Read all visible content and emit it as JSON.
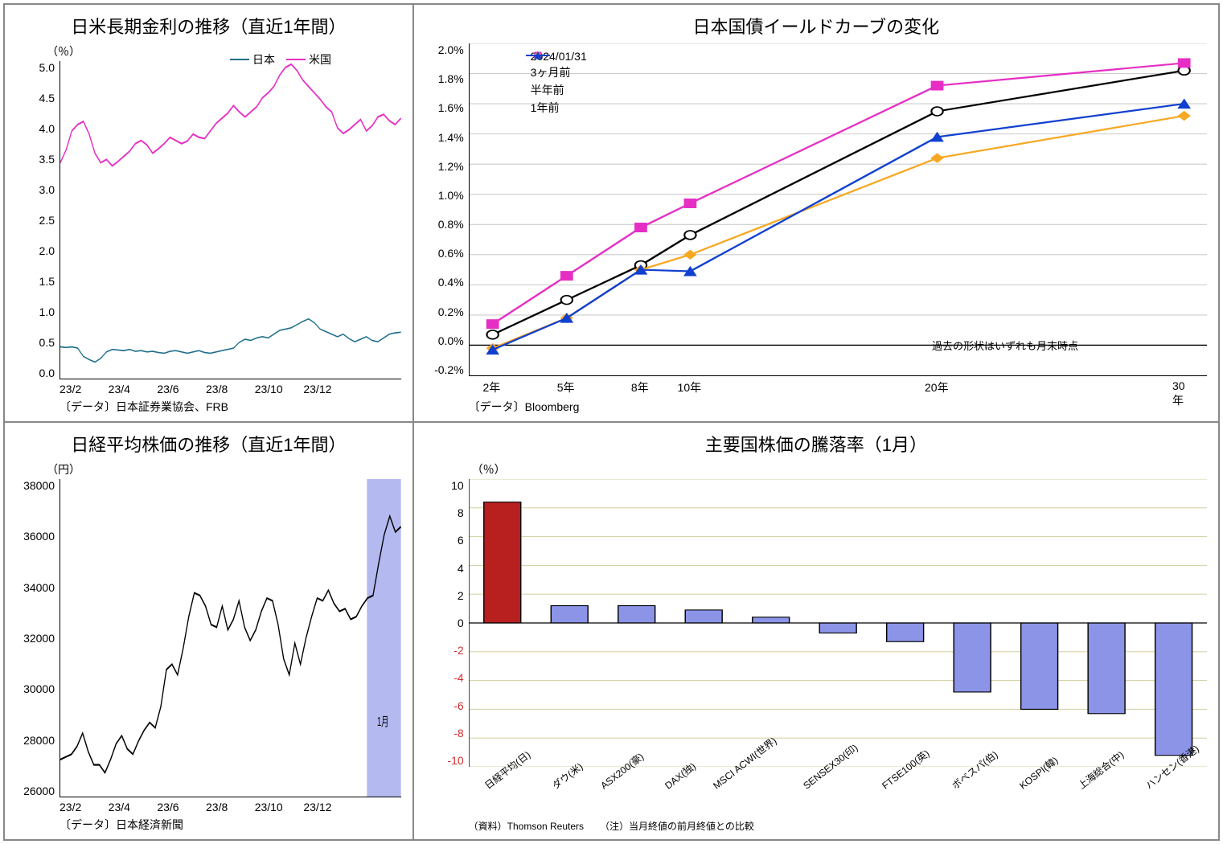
{
  "panels": {
    "tl": {
      "title": "日米長期金利の推移（直近1年間）",
      "yunit": "（％）",
      "ylim": [
        0,
        5.0
      ],
      "yticks": [
        "5.0",
        "4.5",
        "4.0",
        "3.5",
        "3.0",
        "2.5",
        "2.0",
        "1.5",
        "1.0",
        "0.5",
        "0.0"
      ],
      "xticks": [
        "23/2",
        "23/4",
        "23/6",
        "23/8",
        "23/10",
        "23/12",
        ""
      ],
      "source": "〔データ〕日本証券業協会、FRB",
      "legend": {
        "jp": {
          "label": "日本",
          "color": "#1f6f8b"
        },
        "us": {
          "label": "米国",
          "color": "#e62ec4"
        }
      },
      "series": {
        "jp": {
          "color": "#1f6f8b",
          "width": 1.5,
          "values": [
            0.5,
            0.49,
            0.5,
            0.48,
            0.35,
            0.3,
            0.26,
            0.32,
            0.42,
            0.46,
            0.45,
            0.44,
            0.46,
            0.43,
            0.44,
            0.42,
            0.43,
            0.41,
            0.4,
            0.43,
            0.44,
            0.42,
            0.4,
            0.42,
            0.44,
            0.41,
            0.4,
            0.42,
            0.44,
            0.46,
            0.48,
            0.57,
            0.62,
            0.6,
            0.64,
            0.66,
            0.64,
            0.7,
            0.76,
            0.78,
            0.8,
            0.85,
            0.9,
            0.94,
            0.88,
            0.78,
            0.74,
            0.7,
            0.66,
            0.7,
            0.63,
            0.58,
            0.62,
            0.66,
            0.6,
            0.58,
            0.64,
            0.7,
            0.72,
            0.73
          ]
        },
        "us": {
          "color": "#e62ec4",
          "width": 2,
          "values": [
            3.4,
            3.6,
            3.9,
            4.0,
            4.05,
            3.85,
            3.55,
            3.4,
            3.45,
            3.35,
            3.42,
            3.5,
            3.58,
            3.7,
            3.75,
            3.68,
            3.55,
            3.62,
            3.7,
            3.8,
            3.75,
            3.7,
            3.74,
            3.85,
            3.8,
            3.78,
            3.9,
            4.02,
            4.1,
            4.18,
            4.3,
            4.2,
            4.12,
            4.2,
            4.28,
            4.42,
            4.5,
            4.6,
            4.78,
            4.9,
            4.95,
            4.85,
            4.7,
            4.6,
            4.5,
            4.4,
            4.28,
            4.2,
            3.95,
            3.86,
            3.92,
            4.0,
            4.08,
            3.9,
            3.98,
            4.12,
            4.16,
            4.06,
            4.0,
            4.1
          ]
        }
      }
    },
    "tr": {
      "title": "日本国債イールドカーブの変化",
      "ylim": [
        -0.2,
        2.0
      ],
      "yticks": [
        "2.0%",
        "1.8%",
        "1.6%",
        "1.4%",
        "1.2%",
        "1.0%",
        "0.8%",
        "0.6%",
        "0.4%",
        "0.2%",
        "0.0%",
        "-0.2%"
      ],
      "xvals": [
        2,
        5,
        8,
        10,
        20,
        30
      ],
      "xlabels": [
        "2年",
        "5年",
        "8年",
        "10年",
        "20年",
        "30年"
      ],
      "source": "〔データ〕Bloomberg",
      "note": "過去の形状はいずれも月末時点",
      "series": [
        {
          "label": "2024/01/31",
          "color": "#000",
          "marker": "circle",
          "fill": "#fff",
          "values": [
            0.07,
            0.3,
            0.53,
            0.73,
            1.55,
            1.82
          ]
        },
        {
          "label": "3ヶ月前",
          "color": "#e62ec4",
          "marker": "square",
          "fill": "#e62ec4",
          "values": [
            0.14,
            0.46,
            0.78,
            0.94,
            1.72,
            1.87
          ]
        },
        {
          "label": "半年前",
          "color": "#f7a823",
          "marker": "diamond",
          "fill": "#f7a823",
          "values": [
            -0.02,
            0.18,
            0.5,
            0.6,
            1.24,
            1.52
          ]
        },
        {
          "label": "1年前",
          "color": "#1040d0",
          "marker": "triangle",
          "fill": "#1040d0",
          "values": [
            -0.03,
            0.18,
            0.5,
            0.49,
            1.38,
            1.6
          ]
        }
      ]
    },
    "bl": {
      "title": "日経平均株価の推移（直近1年間）",
      "yunit": "（円）",
      "ylim": [
        26000,
        38000
      ],
      "yticks": [
        "38000",
        "36000",
        "34000",
        "32000",
        "30000",
        "28000",
        "26000"
      ],
      "xticks": [
        "23/2",
        "23/4",
        "23/6",
        "23/8",
        "23/10",
        "23/12",
        ""
      ],
      "source": "〔データ〕日本経済新聞",
      "highlight": {
        "label": "1月",
        "start": 0.9,
        "end": 1.0,
        "color": "#b4b9f0"
      },
      "series": {
        "color": "#000",
        "width": 2,
        "values": [
          27400,
          27500,
          27600,
          27900,
          28400,
          27700,
          27200,
          27200,
          26900,
          27400,
          28000,
          28300,
          27800,
          27600,
          28100,
          28500,
          28800,
          28600,
          29400,
          30800,
          31000,
          30600,
          31600,
          32800,
          33700,
          33600,
          33200,
          32500,
          32400,
          33200,
          32300,
          32700,
          33400,
          32400,
          31900,
          32300,
          33000,
          33500,
          33400,
          32500,
          31200,
          30600,
          31800,
          31000,
          32000,
          32800,
          33500,
          33400,
          33800,
          33300,
          33000,
          33100,
          32700,
          32800,
          33200,
          33500,
          33600,
          34800,
          35900,
          36600,
          36000,
          36200
        ]
      }
    },
    "br": {
      "title": "主要国株価の騰落率（1月）",
      "yunit": "（％）",
      "ylim": [
        -10,
        10
      ],
      "yticks": [
        "10",
        "8",
        "6",
        "4",
        "2",
        "0",
        "-2",
        "-4",
        "-6",
        "-8",
        "-10"
      ],
      "grid_color": "#d6d4a8",
      "categories": [
        "日経平均(日)",
        "ダウ(米)",
        "ASX200(豪)",
        "DAX(独)",
        "MSCI ACWI(世界)",
        "SENSEX30(印)",
        "FTSE100(英)",
        "ボベスパ(伯)",
        "KOSPI(韓)",
        "上海総合(中)",
        "ハンセン(香港)"
      ],
      "values": [
        8.4,
        1.2,
        1.2,
        0.9,
        0.4,
        -0.7,
        -1.3,
        -4.8,
        -6.0,
        -6.3,
        -9.2
      ],
      "colors": [
        "#b82020",
        "#8c94e8",
        "#8c94e8",
        "#8c94e8",
        "#8c94e8",
        "#8c94e8",
        "#8c94e8",
        "#8c94e8",
        "#8c94e8",
        "#8c94e8",
        "#8c94e8"
      ],
      "source": "（資料）Thomson Reuters",
      "note": "（注）当月終値の前月終値との比較"
    }
  }
}
